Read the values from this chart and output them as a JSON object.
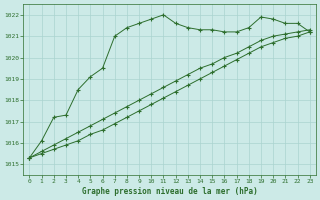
{
  "title": "Graphe pression niveau de la mer (hPa)",
  "background_color": "#cceae7",
  "grid_color": "#aad4d0",
  "line_color": "#2d6e2d",
  "xlim": [
    -0.5,
    23.5
  ],
  "ylim": [
    1014.5,
    1022.5
  ],
  "yticks": [
    1015,
    1016,
    1017,
    1018,
    1019,
    1020,
    1021,
    1022
  ],
  "xticks": [
    0,
    1,
    2,
    3,
    4,
    5,
    6,
    7,
    8,
    9,
    10,
    11,
    12,
    13,
    14,
    15,
    16,
    17,
    18,
    19,
    20,
    21,
    22,
    23
  ],
  "series1": {
    "x": [
      0,
      1,
      2,
      3,
      4,
      5,
      6,
      7,
      8,
      9,
      10,
      11,
      12,
      13,
      14,
      15,
      16,
      17,
      18,
      19,
      20,
      21,
      22,
      23
    ],
    "y": [
      1015.3,
      1016.1,
      1017.2,
      1017.3,
      1018.5,
      1019.1,
      1019.5,
      1021.0,
      1021.4,
      1021.6,
      1021.8,
      1022.0,
      1021.6,
      1021.4,
      1021.3,
      1021.3,
      1021.2,
      1021.2,
      1021.4,
      1021.9,
      1021.8,
      1021.6,
      1021.6,
      1021.2
    ]
  },
  "series2": {
    "x": [
      0,
      1,
      2,
      3,
      4,
      5,
      6,
      7,
      8,
      9,
      10,
      11,
      12,
      13,
      14,
      15,
      16,
      17,
      18,
      19,
      20,
      21,
      22,
      23
    ],
    "y": [
      1015.3,
      1015.6,
      1015.9,
      1016.2,
      1016.5,
      1016.8,
      1017.1,
      1017.4,
      1017.7,
      1018.0,
      1018.3,
      1018.6,
      1018.9,
      1019.2,
      1019.5,
      1019.7,
      1020.0,
      1020.2,
      1020.5,
      1020.8,
      1021.0,
      1021.1,
      1021.2,
      1021.3
    ]
  },
  "series3": {
    "x": [
      0,
      1,
      2,
      3,
      4,
      5,
      6,
      7,
      8,
      9,
      10,
      11,
      12,
      13,
      14,
      15,
      16,
      17,
      18,
      19,
      20,
      21,
      22,
      23
    ],
    "y": [
      1015.3,
      1015.5,
      1015.7,
      1015.9,
      1016.1,
      1016.4,
      1016.6,
      1016.9,
      1017.2,
      1017.5,
      1017.8,
      1018.1,
      1018.4,
      1018.7,
      1019.0,
      1019.3,
      1019.6,
      1019.9,
      1020.2,
      1020.5,
      1020.7,
      1020.9,
      1021.0,
      1021.2
    ]
  }
}
